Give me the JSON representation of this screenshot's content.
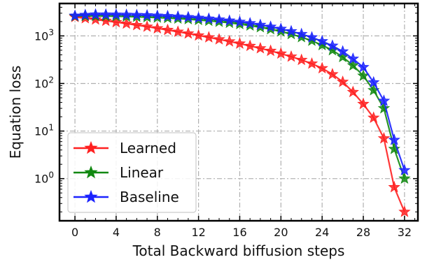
{
  "chart_data": {
    "type": "line",
    "xlabel": "Total Backward biffusion steps",
    "ylabel": "Equation loss",
    "yscale": "log",
    "xlim": [
      -1.5,
      33.3
    ],
    "ylim": [
      0.13,
      4800
    ],
    "xticks": [
      0,
      4,
      8,
      12,
      16,
      20,
      24,
      28,
      32
    ],
    "yticks": [
      {
        "value": 1,
        "base": "10",
        "exp": "0"
      },
      {
        "value": 10,
        "base": "10",
        "exp": "1"
      },
      {
        "value": 100,
        "base": "10",
        "exp": "2"
      },
      {
        "value": 1000,
        "base": "10",
        "exp": "3"
      }
    ],
    "grid": true,
    "legend_position": "bottom-left",
    "x": [
      0,
      1,
      2,
      3,
      4,
      5,
      6,
      7,
      8,
      9,
      10,
      11,
      12,
      13,
      14,
      15,
      16,
      17,
      18,
      19,
      20,
      21,
      22,
      23,
      24,
      25,
      26,
      27,
      28,
      29,
      30,
      31,
      32
    ],
    "series": [
      {
        "name": "Learned",
        "color": "#ff2020",
        "marker": "star",
        "values": [
          2500,
          2350,
          2210,
          2070,
          1940,
          1810,
          1680,
          1560,
          1440,
          1330,
          1220,
          1120,
          1020,
          930,
          845,
          765,
          688,
          615,
          548,
          484,
          424,
          366,
          312,
          261,
          209,
          156,
          108,
          66,
          37,
          19,
          7,
          0.66,
          0.2
        ]
      },
      {
        "name": "Linear",
        "color": "#118811",
        "marker": "star",
        "values": [
          2600,
          2620,
          2610,
          2600,
          2580,
          2550,
          2510,
          2470,
          2420,
          2370,
          2310,
          2240,
          2160,
          2070,
          1980,
          1880,
          1770,
          1650,
          1520,
          1380,
          1240,
          1090,
          940,
          790,
          640,
          500,
          360,
          240,
          145,
          72,
          30,
          4.2,
          1.0
        ]
      },
      {
        "name": "Baseline",
        "color": "#1a22ff",
        "marker": "star",
        "values": [
          2650,
          2750,
          2800,
          2800,
          2790,
          2770,
          2740,
          2700,
          2650,
          2600,
          2540,
          2470,
          2390,
          2300,
          2200,
          2090,
          1970,
          1840,
          1700,
          1550,
          1400,
          1250,
          1090,
          930,
          770,
          620,
          470,
          330,
          220,
          105,
          43,
          6.5,
          1.5
        ]
      }
    ]
  }
}
